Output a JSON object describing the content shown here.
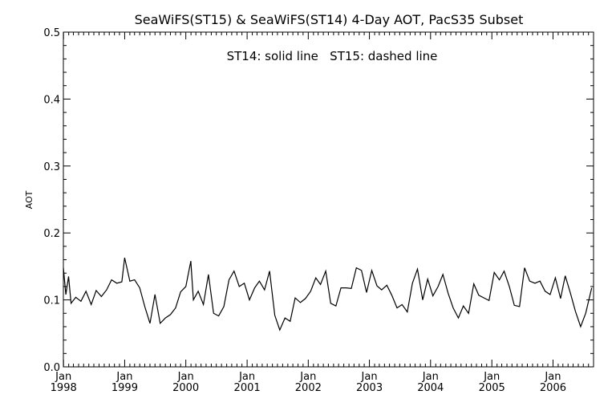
{
  "chart_data": {
    "type": "line",
    "title": "SeaWiFS(ST15) & SeaWiFS(ST14) 4-Day AOT, PacS35 Subset",
    "annotation": "ST14: solid line   ST15: dashed line",
    "xlabel": "",
    "ylabel": "AOT",
    "ylim": [
      0.0,
      0.5
    ],
    "yticks": [
      "0.0",
      "0.1",
      "0.2",
      "0.3",
      "0.4",
      "0.5"
    ],
    "ytick_values": [
      0.0,
      0.1,
      0.2,
      0.3,
      0.4,
      0.5
    ],
    "xlim": [
      "1997-12-31",
      "2006-08-31"
    ],
    "xticks": [
      {
        "month": "Jan",
        "year": "1998",
        "date": "1998-01-01"
      },
      {
        "month": "Jan",
        "year": "1999",
        "date": "1999-01-01"
      },
      {
        "month": "Jan",
        "year": "2000",
        "date": "2000-01-01"
      },
      {
        "month": "Jan",
        "year": "2001",
        "date": "2001-01-01"
      },
      {
        "month": "Jan",
        "year": "2002",
        "date": "2002-01-01"
      },
      {
        "month": "Jan",
        "year": "2003",
        "date": "2003-01-01"
      },
      {
        "month": "Jan",
        "year": "2004",
        "date": "2004-01-01"
      },
      {
        "month": "Jan",
        "year": "2005",
        "date": "2005-01-01"
      },
      {
        "month": "Jan",
        "year": "2006",
        "date": "2006-01-01"
      }
    ],
    "grid": false,
    "series": [
      {
        "name": "ST14",
        "style": "solid",
        "color": "#000000",
        "points": [
          [
            "1997-12-31",
            0.148
          ],
          [
            "1998-01-15",
            0.108
          ],
          [
            "1998-01-31",
            0.135
          ],
          [
            "1998-02-15",
            0.095
          ],
          [
            "1998-03-15",
            0.104
          ],
          [
            "1998-04-15",
            0.098
          ],
          [
            "1998-05-15",
            0.113
          ],
          [
            "1998-06-15",
            0.093
          ],
          [
            "1998-07-15",
            0.114
          ],
          [
            "1998-08-15",
            0.105
          ],
          [
            "1998-09-15",
            0.115
          ],
          [
            "1998-10-15",
            0.13
          ],
          [
            "1998-11-15",
            0.125
          ],
          [
            "1998-12-15",
            0.127
          ],
          [
            "1999-01-01",
            0.163
          ],
          [
            "1999-02-01",
            0.128
          ],
          [
            "1999-03-01",
            0.13
          ],
          [
            "1999-04-01",
            0.118
          ],
          [
            "1999-05-01",
            0.09
          ],
          [
            "1999-06-01",
            0.065
          ],
          [
            "1999-07-01",
            0.108
          ],
          [
            "1999-08-01",
            0.065
          ],
          [
            "1999-09-01",
            0.073
          ],
          [
            "1999-10-01",
            0.078
          ],
          [
            "1999-11-01",
            0.088
          ],
          [
            "1999-12-01",
            0.112
          ],
          [
            "2000-01-01",
            0.12
          ],
          [
            "2000-01-31",
            0.158
          ],
          [
            "2000-02-15",
            0.1
          ],
          [
            "2000-03-15",
            0.113
          ],
          [
            "2000-04-15",
            0.093
          ],
          [
            "2000-05-15",
            0.138
          ],
          [
            "2000-06-15",
            0.08
          ],
          [
            "2000-07-15",
            0.076
          ],
          [
            "2000-08-15",
            0.09
          ],
          [
            "2000-09-15",
            0.13
          ],
          [
            "2000-10-15",
            0.143
          ],
          [
            "2000-11-15",
            0.12
          ],
          [
            "2000-12-15",
            0.125
          ],
          [
            "2001-01-15",
            0.1
          ],
          [
            "2001-02-15",
            0.118
          ],
          [
            "2001-03-15",
            0.128
          ],
          [
            "2001-04-15",
            0.115
          ],
          [
            "2001-05-15",
            0.143
          ],
          [
            "2001-06-15",
            0.077
          ],
          [
            "2001-07-15",
            0.055
          ],
          [
            "2001-08-15",
            0.073
          ],
          [
            "2001-09-15",
            0.068
          ],
          [
            "2001-10-15",
            0.103
          ],
          [
            "2001-11-15",
            0.096
          ],
          [
            "2001-12-15",
            0.102
          ],
          [
            "2002-01-15",
            0.113
          ],
          [
            "2002-02-15",
            0.133
          ],
          [
            "2002-03-15",
            0.123
          ],
          [
            "2002-04-15",
            0.143
          ],
          [
            "2002-05-15",
            0.095
          ],
          [
            "2002-06-15",
            0.091
          ],
          [
            "2002-07-15",
            0.118
          ],
          [
            "2002-08-15",
            0.118
          ],
          [
            "2002-09-15",
            0.117
          ],
          [
            "2002-10-15",
            0.148
          ],
          [
            "2002-11-15",
            0.144
          ],
          [
            "2002-12-15",
            0.111
          ],
          [
            "2003-01-15",
            0.144
          ],
          [
            "2003-02-15",
            0.121
          ],
          [
            "2003-03-15",
            0.115
          ],
          [
            "2003-04-15",
            0.122
          ],
          [
            "2003-05-15",
            0.107
          ],
          [
            "2003-06-15",
            0.088
          ],
          [
            "2003-07-15",
            0.093
          ],
          [
            "2003-08-15",
            0.082
          ],
          [
            "2003-09-15",
            0.125
          ],
          [
            "2003-10-15",
            0.146
          ],
          [
            "2003-11-15",
            0.1
          ],
          [
            "2003-12-15",
            0.131
          ],
          [
            "2004-01-15",
            0.106
          ],
          [
            "2004-02-15",
            0.12
          ],
          [
            "2004-03-15",
            0.138
          ],
          [
            "2004-04-15",
            0.11
          ],
          [
            "2004-05-15",
            0.088
          ],
          [
            "2004-06-15",
            0.073
          ],
          [
            "2004-07-15",
            0.091
          ],
          [
            "2004-08-15",
            0.08
          ],
          [
            "2004-09-15",
            0.124
          ],
          [
            "2004-10-15",
            0.107
          ],
          [
            "2004-11-15",
            0.103
          ],
          [
            "2004-12-15",
            0.099
          ],
          [
            "2005-01-15",
            0.141
          ],
          [
            "2005-02-15",
            0.13
          ],
          [
            "2005-03-15",
            0.143
          ],
          [
            "2005-04-15",
            0.12
          ],
          [
            "2005-05-15",
            0.092
          ],
          [
            "2005-06-15",
            0.09
          ],
          [
            "2005-07-15",
            0.148
          ],
          [
            "2005-08-15",
            0.128
          ],
          [
            "2005-09-15",
            0.125
          ],
          [
            "2005-10-15",
            0.128
          ],
          [
            "2005-11-15",
            0.113
          ],
          [
            "2005-12-15",
            0.108
          ],
          [
            "2006-01-15",
            0.133
          ],
          [
            "2006-02-15",
            0.102
          ],
          [
            "2006-03-15",
            0.136
          ],
          [
            "2006-04-15",
            0.11
          ],
          [
            "2006-05-15",
            0.083
          ],
          [
            "2006-06-15",
            0.06
          ],
          [
            "2006-07-15",
            0.08
          ],
          [
            "2006-08-20",
            0.118
          ]
        ]
      }
    ]
  }
}
